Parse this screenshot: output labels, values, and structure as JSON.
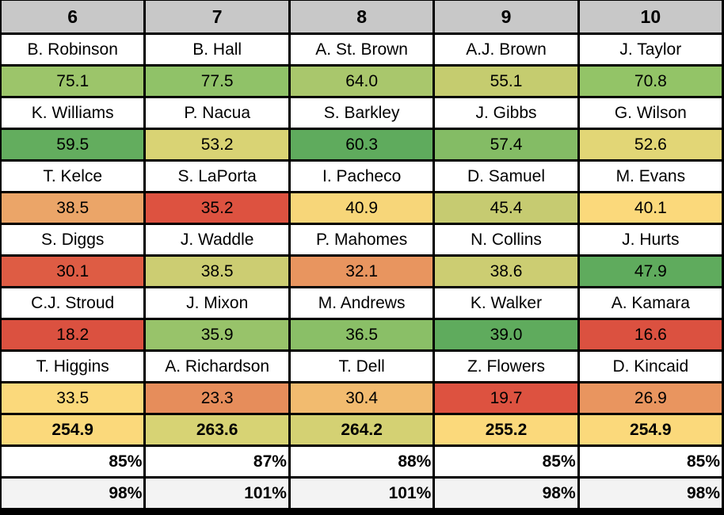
{
  "columns": [
    "6",
    "7",
    "8",
    "9",
    "10"
  ],
  "rows": [
    {
      "names": [
        "B. Robinson",
        "B. Hall",
        "A. St. Brown",
        "A.J. Brown",
        "J. Taylor"
      ],
      "scores": [
        "75.1",
        "77.5",
        "64.0",
        "55.1",
        "70.8"
      ],
      "colors": [
        "#9cc56a",
        "#90c268",
        "#a9c76c",
        "#c5cc6f",
        "#93c467"
      ]
    },
    {
      "names": [
        "K. Williams",
        "P. Nacua",
        "S. Barkley",
        "J. Gibbs",
        "G. Wilson"
      ],
      "scores": [
        "59.5",
        "53.2",
        "60.3",
        "57.4",
        "52.6"
      ],
      "colors": [
        "#63ad5e",
        "#d9d374",
        "#5fab5d",
        "#84bc65",
        "#e2d676"
      ]
    },
    {
      "names": [
        "T. Kelce",
        "S. LaPorta",
        "I. Pacheco",
        "D. Samuel",
        "M. Evans"
      ],
      "scores": [
        "38.5",
        "35.2",
        "40.9",
        "45.4",
        "40.1"
      ],
      "colors": [
        "#eba568",
        "#dd5240",
        "#f7d679",
        "#c6cb71",
        "#fbd97b"
      ]
    },
    {
      "names": [
        "S. Diggs",
        "J. Waddle",
        "P. Mahomes",
        "N. Collins",
        "J. Hurts"
      ],
      "scores": [
        "30.1",
        "38.5",
        "32.1",
        "38.6",
        "47.9"
      ],
      "colors": [
        "#de5c44",
        "#cccd72",
        "#e8955f",
        "#cccd72",
        "#5fab5d"
      ]
    },
    {
      "names": [
        "C.J. Stroud",
        "J. Mixon",
        "M. Andrews",
        "K. Walker",
        "A. Kamara"
      ],
      "scores": [
        "18.2",
        "35.9",
        "36.5",
        "39.0",
        "16.6"
      ],
      "colors": [
        "#db5140",
        "#98c36a",
        "#8abf67",
        "#5fab5d",
        "#db5140"
      ]
    },
    {
      "names": [
        "T. Higgins",
        "A. Richardson",
        "T. Dell",
        "Z. Flowers",
        "D. Kincaid"
      ],
      "scores": [
        "33.5",
        "23.3",
        "30.4",
        "19.7",
        "26.9"
      ],
      "colors": [
        "#fbd97b",
        "#e68d5b",
        "#f2bb6f",
        "#dd5240",
        "#e9955f"
      ]
    }
  ],
  "totals": [
    "254.9",
    "263.6",
    "264.2",
    "255.2",
    "254.9"
  ],
  "total_colors": [
    "#fbd97b",
    "#d7d374",
    "#d4d173",
    "#fbd97b",
    "#fbd97b"
  ],
  "pct_row1": [
    "85%",
    "87%",
    "88%",
    "85%",
    "85%"
  ],
  "pct_row2": [
    "98%",
    "101%",
    "101%",
    "98%",
    "98%"
  ]
}
